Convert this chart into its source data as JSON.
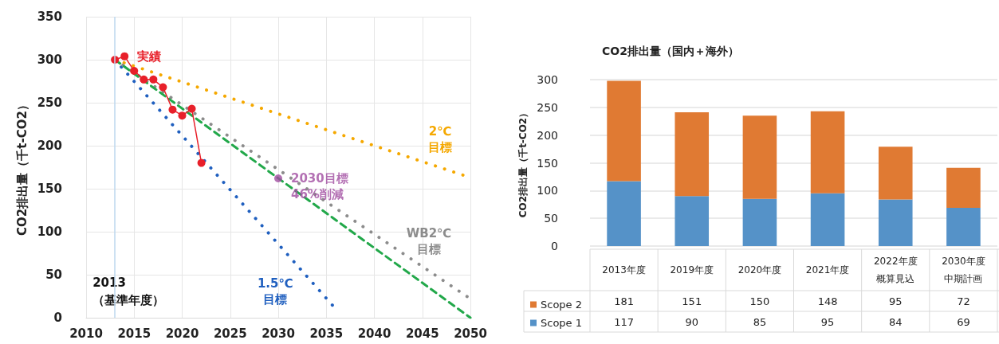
{
  "chart_data": [
    {
      "type": "line",
      "ylabel": "CO2排出量（千t-CO2）",
      "xlim": [
        2010,
        2050
      ],
      "xticks": [
        2010,
        2015,
        2020,
        2025,
        2030,
        2035,
        2040,
        2045,
        2050
      ],
      "ylim": [
        0,
        350
      ],
      "yticks": [
        0,
        50,
        100,
        150,
        200,
        250,
        300,
        350
      ],
      "grid": true,
      "legend": false,
      "series": [
        {
          "name": "実績",
          "color": "#e8202a",
          "marker": "circle",
          "line_style": "solid",
          "x": [
            2013,
            2014,
            2015,
            2016,
            2017,
            2018,
            2019,
            2020,
            2021,
            2022
          ],
          "values": [
            300,
            304,
            287,
            277,
            277,
            268,
            242,
            235,
            243,
            180
          ]
        },
        {
          "name": "1.5℃目標",
          "color": "#1f5fbf",
          "marker": "none",
          "line_style": "dotted",
          "x": [
            2013,
            2036
          ],
          "values": [
            300,
            10
          ]
        },
        {
          "name": "2℃目標",
          "color": "#f5a800",
          "marker": "none",
          "line_style": "dotted",
          "x": [
            2013,
            2050
          ],
          "values": [
            300,
            163
          ]
        },
        {
          "name": "WB2℃目標",
          "color": "#8c8c8c",
          "marker": "none",
          "line_style": "dotted",
          "x": [
            2013,
            2050
          ],
          "values": [
            300,
            22
          ]
        },
        {
          "color": "#22a84a",
          "marker": "none",
          "line_style": "dashed",
          "x": [
            2013,
            2050
          ],
          "values": [
            300,
            0
          ]
        },
        {
          "name": "2030目標46%削減",
          "type": "scatter",
          "color": "#a04ca0",
          "marker": "circle",
          "x": [
            2030
          ],
          "values": [
            162
          ]
        }
      ],
      "ref_lines": [
        {
          "axis": "x",
          "value": 2013,
          "label": "2013\n（基準年度）",
          "color": "#bdd7ee"
        }
      ]
    },
    {
      "type": "bar",
      "title": "CO2排出量（国内＋海外）",
      "ylabel": "CO2排出量（千t-CO2）",
      "categories": [
        "2013年度",
        "2019年度",
        "2020年度",
        "2021年度",
        "2022年度概算見込",
        "2030年度中期計画"
      ],
      "stacked": true,
      "ylim": [
        0,
        300
      ],
      "yticks": [
        0,
        50,
        100,
        150,
        200,
        250,
        300
      ],
      "grid": "y",
      "legend": "bottom",
      "data_labels": true,
      "series": [
        {
          "name": "Scope 1",
          "color": "#5592c8",
          "values": [
            117,
            90,
            85,
            95,
            84,
            69
          ]
        },
        {
          "name": "Scope 2",
          "color": "#e07a33",
          "values": [
            181,
            151,
            150,
            148,
            95,
            72
          ]
        }
      ]
    }
  ]
}
